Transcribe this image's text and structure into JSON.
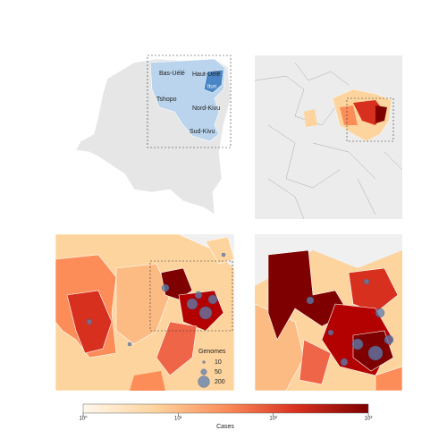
{
  "provinces": [
    "Bas-Uélé",
    "Haut-Uélé",
    "Ituri",
    "Tshopo",
    "Nord-Kivu",
    "Sud-Kivu"
  ],
  "genomes_legend": {
    "title": "Genomes",
    "sizes": [
      10,
      50,
      200
    ]
  },
  "colorbar": {
    "label": "Cases",
    "xlim": [
      1,
      1000
    ],
    "log": true,
    "ticks": [
      {
        "value": 1,
        "label": "10⁰"
      },
      {
        "value": 10,
        "label": "10¹"
      },
      {
        "value": 100,
        "label": "10²"
      },
      {
        "value": 1000,
        "label": "10³"
      }
    ]
  }
}
